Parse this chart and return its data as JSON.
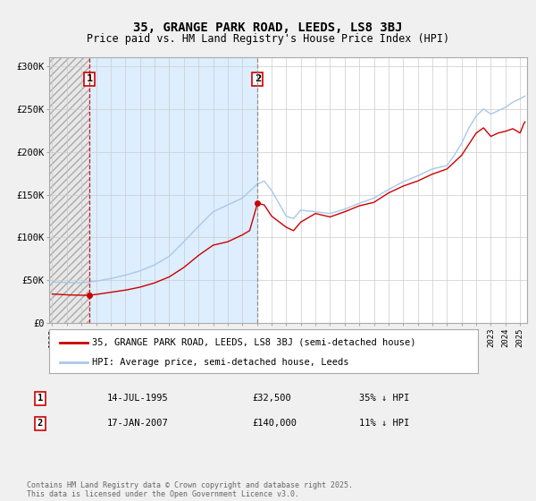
{
  "title1": "35, GRANGE PARK ROAD, LEEDS, LS8 3BJ",
  "title2": "Price paid vs. HM Land Registry's House Price Index (HPI)",
  "legend_line1": "35, GRANGE PARK ROAD, LEEDS, LS8 3BJ (semi-detached house)",
  "legend_line2": "HPI: Average price, semi-detached house, Leeds",
  "annotation1_date": "14-JUL-1995",
  "annotation1_price": "£32,500",
  "annotation1_hpi": "35% ↓ HPI",
  "annotation2_date": "17-JAN-2007",
  "annotation2_price": "£140,000",
  "annotation2_hpi": "11% ↓ HPI",
  "footer": "Contains HM Land Registry data © Crown copyright and database right 2025.\nThis data is licensed under the Open Government Licence v3.0.",
  "sale1_x": 1995.54,
  "sale1_y": 32500,
  "sale2_x": 2007.04,
  "sale2_y": 140000,
  "vline1_x": 1995.54,
  "vline2_x": 2007.04,
  "hpi_color": "#a8c8e8",
  "price_color": "#cc0000",
  "background_color": "#f0f0f0",
  "plot_bg_color": "#ffffff",
  "grid_color": "#cccccc",
  "ylim": [
    0,
    310000
  ],
  "xlim_start": 1992.8,
  "xlim_end": 2025.5,
  "hpi_anchors_x": [
    1993.0,
    1994.0,
    1995.0,
    1996.0,
    1997.0,
    1998.0,
    1999.0,
    2000.0,
    2001.0,
    2002.0,
    2003.0,
    2004.0,
    2005.0,
    2006.0,
    2007.0,
    2007.5,
    2008.0,
    2009.0,
    2009.5,
    2010.0,
    2011.0,
    2012.0,
    2013.0,
    2014.0,
    2015.0,
    2016.0,
    2017.0,
    2018.0,
    2019.0,
    2020.0,
    2020.5,
    2021.0,
    2021.5,
    2022.0,
    2022.5,
    2023.0,
    2023.5,
    2024.0,
    2024.5,
    2025.0,
    2025.3
  ],
  "hpi_anchors_y": [
    48000,
    47500,
    47000,
    49000,
    52000,
    56000,
    61000,
    68000,
    78000,
    95000,
    113000,
    130000,
    138000,
    146000,
    162000,
    166000,
    155000,
    125000,
    122000,
    132000,
    130000,
    128000,
    133000,
    140000,
    146000,
    156000,
    165000,
    172000,
    180000,
    184000,
    196000,
    210000,
    228000,
    242000,
    250000,
    244000,
    248000,
    252000,
    258000,
    262000,
    265000
  ],
  "price_anchors_x": [
    1993.0,
    1994.0,
    1995.0,
    1995.54,
    1996.0,
    1997.0,
    1998.0,
    1999.0,
    2000.0,
    2001.0,
    2002.0,
    2003.0,
    2004.0,
    2005.0,
    2006.0,
    2006.5,
    2007.04,
    2007.5,
    2008.0,
    2009.0,
    2009.5,
    2010.0,
    2011.0,
    2012.0,
    2013.0,
    2014.0,
    2015.0,
    2016.0,
    2017.0,
    2018.0,
    2019.0,
    2020.0,
    2021.0,
    2022.0,
    2022.5,
    2023.0,
    2023.5,
    2024.0,
    2024.5,
    2025.0,
    2025.3
  ],
  "price_anchors_y": [
    34000,
    33000,
    32500,
    32500,
    33500,
    36000,
    38500,
    42000,
    47000,
    54000,
    65000,
    79000,
    91000,
    95000,
    103000,
    108000,
    140000,
    138000,
    125000,
    112000,
    108000,
    118000,
    128000,
    124000,
    130000,
    137000,
    141000,
    152000,
    160000,
    166000,
    174000,
    180000,
    196000,
    222000,
    228000,
    218000,
    222000,
    224000,
    227000,
    222000,
    235000
  ]
}
